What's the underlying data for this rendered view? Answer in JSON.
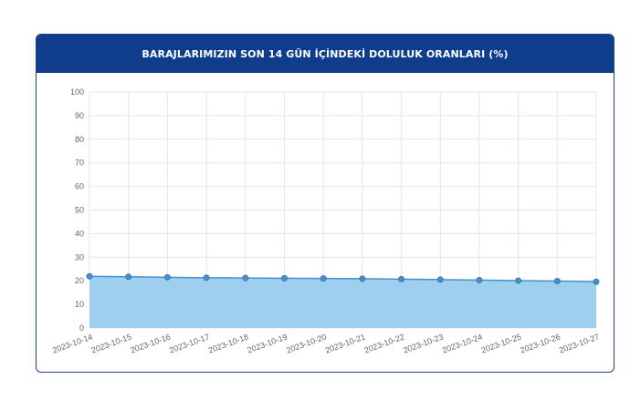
{
  "title": "BARAJLARIMIZIN SON 14 GÜN İÇİNDEKİ DOLULUK ORANLARI (%)",
  "colors": {
    "header": "#0f3d8c",
    "area_fill": "#9fcfee",
    "line": "#4a90c8",
    "point": "#4a90c8",
    "grid": "#e6e6e6"
  },
  "chart_data": {
    "type": "area",
    "title": "BARAJLARIMIZIN SON 14 GÜN İÇİNDEKİ DOLULUK ORANLARI (%)",
    "xlabel": "",
    "ylabel": "",
    "ylim": [
      0,
      100
    ],
    "yticks": [
      0,
      10,
      20,
      30,
      40,
      50,
      60,
      70,
      80,
      90,
      100
    ],
    "grid": true,
    "legend": "none",
    "x": [
      "2023-10-14",
      "2023-10-15",
      "2023-10-16",
      "2023-10-17",
      "2023-10-18",
      "2023-10-19",
      "2023-10-20",
      "2023-10-21",
      "2023-10-22",
      "2023-10-23",
      "2023-10-24",
      "2023-10-25",
      "2023-10-26",
      "2023-10-27"
    ],
    "series": [
      {
        "values": [
          21.9,
          21.7,
          21.5,
          21.3,
          21.2,
          21.1,
          21.0,
          20.9,
          20.7,
          20.5,
          20.3,
          20.1,
          19.9,
          19.6
        ]
      }
    ]
  }
}
